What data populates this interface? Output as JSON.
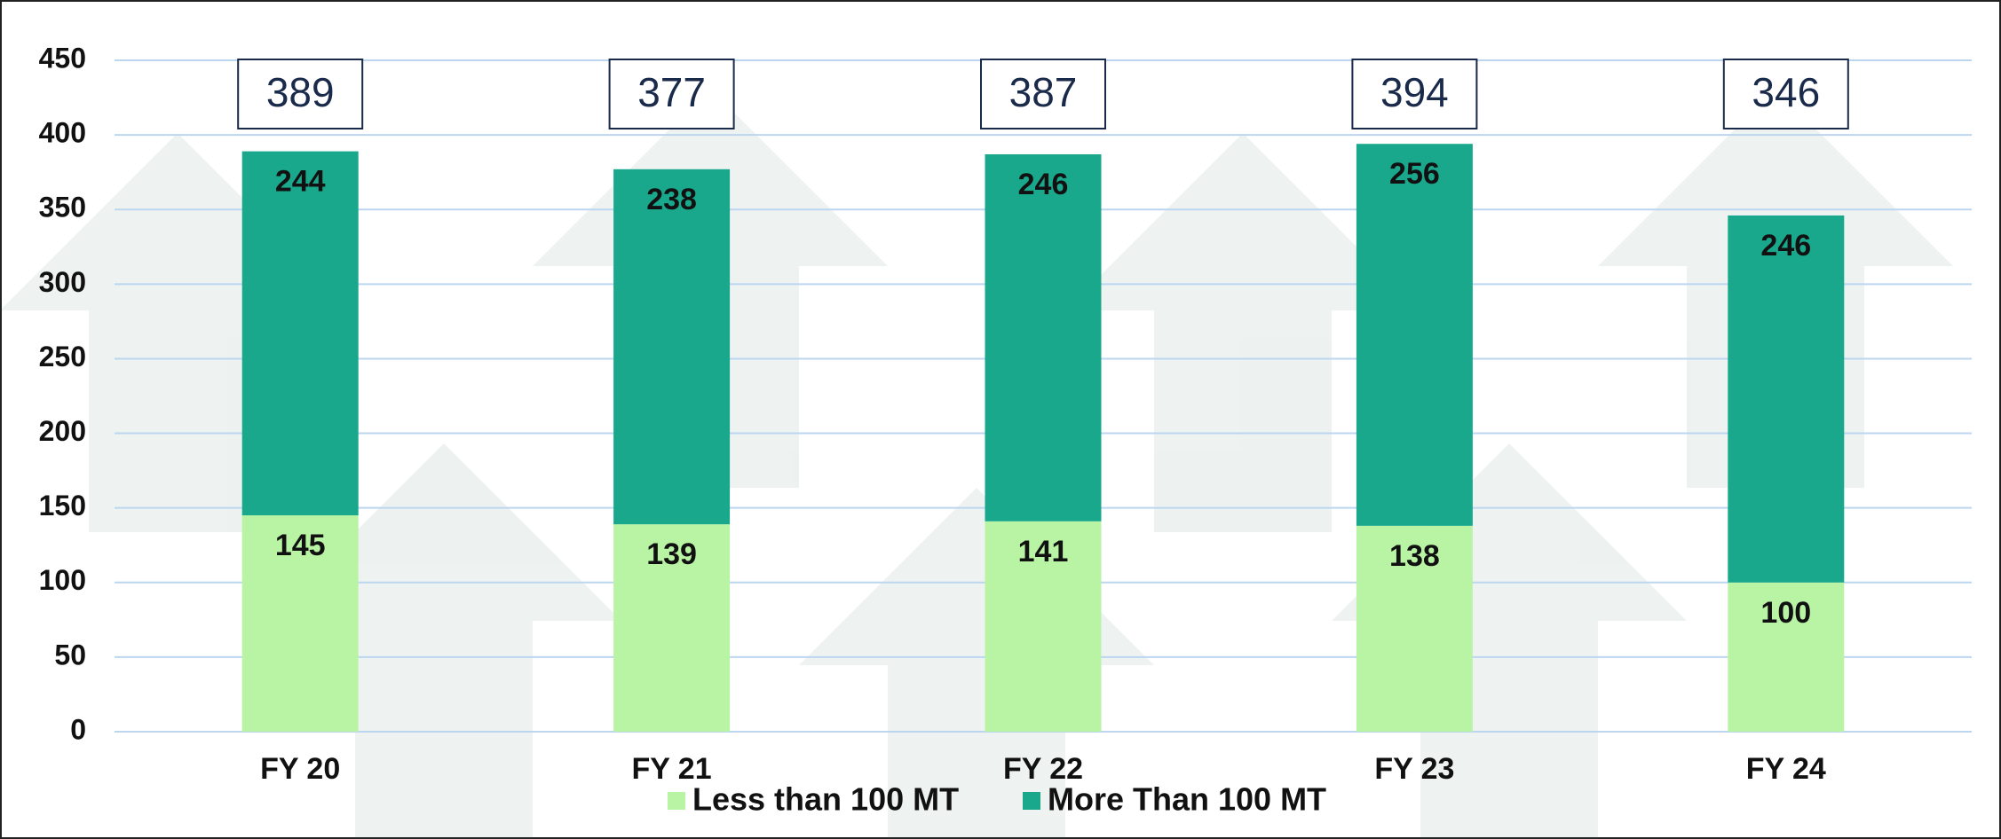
{
  "chart_data": {
    "type": "stacked_bar",
    "categories": [
      "FY 20",
      "FY 21",
      "FY 22",
      "FY 23",
      "FY 24"
    ],
    "series": [
      {
        "name": "Less than 100 MT",
        "color": "#b9f4a4",
        "values": [
          145,
          139,
          141,
          138,
          100
        ]
      },
      {
        "name": "More Than 100 MT",
        "color": "#19a88c",
        "values": [
          244,
          238,
          246,
          256,
          246
        ]
      }
    ],
    "totals": [
      389,
      377,
      387,
      394,
      346
    ],
    "ylim": [
      0,
      450
    ],
    "yticks": [
      0,
      50,
      100,
      150,
      200,
      250,
      300,
      350,
      400,
      450
    ],
    "grid": true
  }
}
